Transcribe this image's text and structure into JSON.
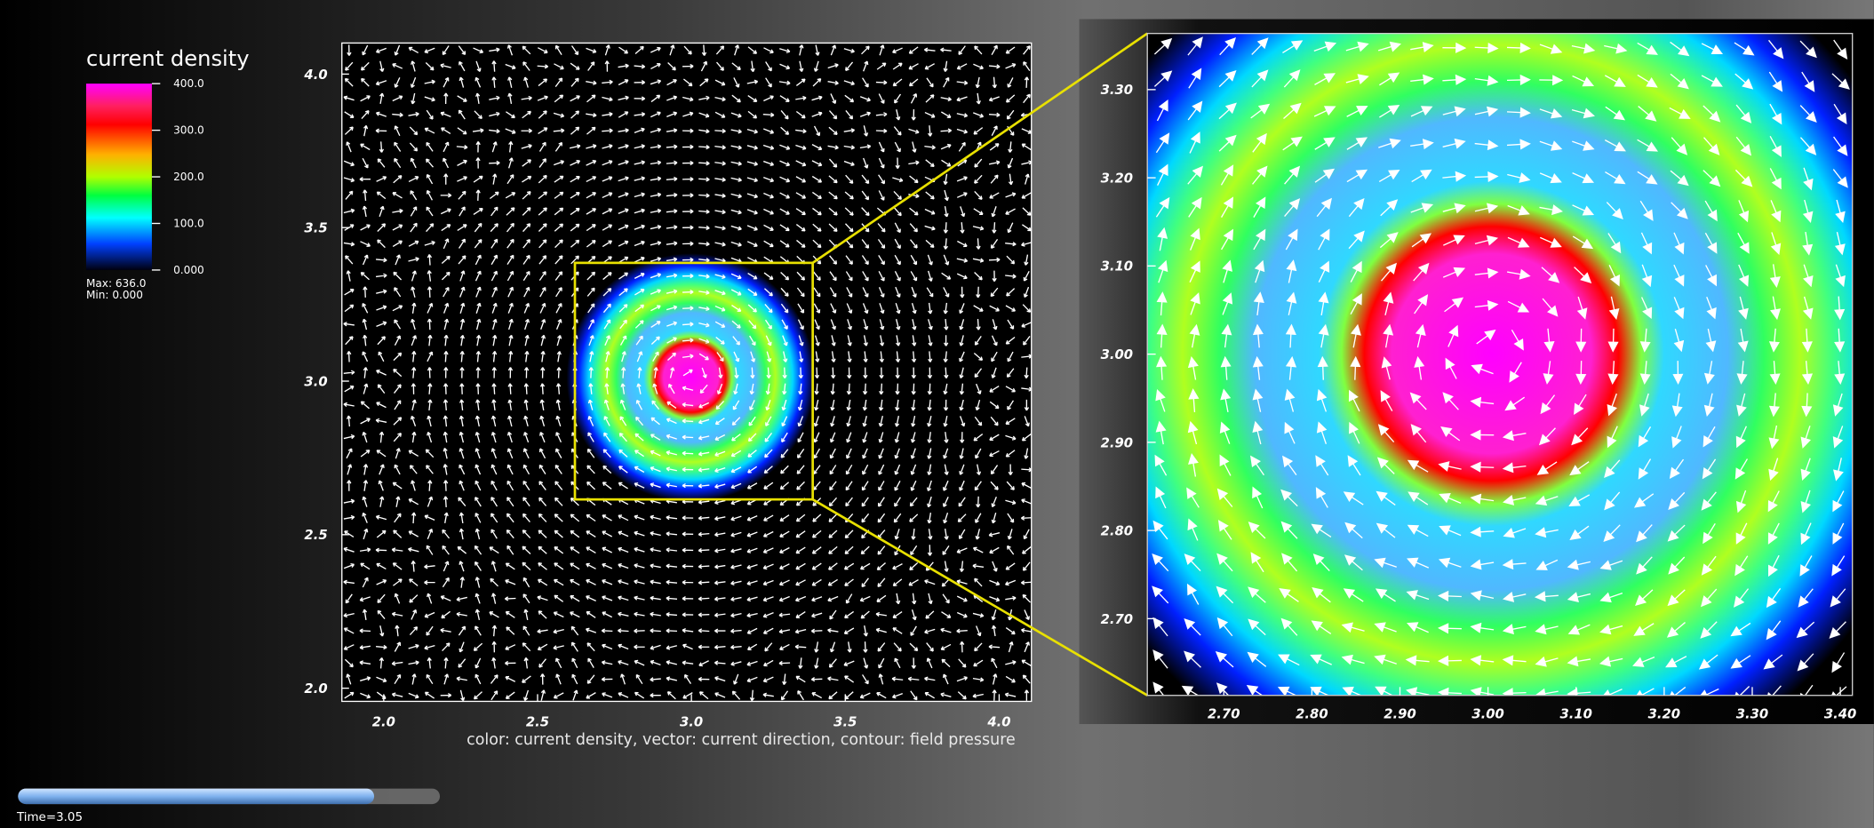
{
  "legend": {
    "title": "current density",
    "ticks": [
      "400.0",
      "300.0",
      "200.0",
      "100.0",
      "0.000"
    ],
    "max": "Max:  636.0",
    "min": "Min:  0.000"
  },
  "main_plot": {
    "yticks": [
      "4.0",
      "3.5",
      "3.0",
      "2.5",
      "2.0"
    ],
    "xticks": [
      "2.0",
      "2.5",
      "3.0",
      "3.5",
      "4.0"
    ],
    "caption": "color: current density, vector: current direction, contour: field pressure"
  },
  "zoom_plot": {
    "yticks": [
      "3.30",
      "3.20",
      "3.10",
      "3.00",
      "2.90",
      "2.80",
      "2.70"
    ],
    "xticks": [
      "2.70",
      "2.80",
      "2.90",
      "3.00",
      "3.10",
      "3.20",
      "3.30",
      "3.40"
    ]
  },
  "time": "Time=3.05"
}
